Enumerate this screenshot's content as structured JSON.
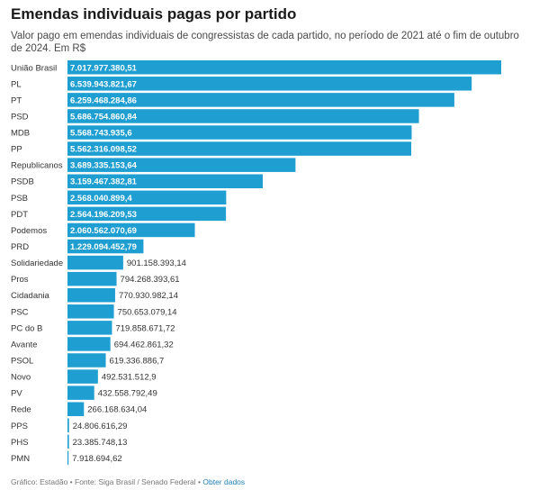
{
  "header": {
    "title": "Emendas individuais pagas por partido",
    "subtitle": "Valor pago em emendas individuais de congressistas de cada partido, no período de 2021 até o fim de outubro de 2024. Em R$"
  },
  "footer": {
    "source": "Gráfico: Estadão • Fonte: Siga Brasil / Senado Federal • ",
    "link": "Obter dados"
  },
  "colors": {
    "bar": "#1f9ed1",
    "label_inside": "#ffffff",
    "label_outside": "#333333",
    "category": "#333333"
  },
  "chart_data": {
    "type": "bar",
    "orientation": "horizontal",
    "title": "Emendas individuais pagas por partido",
    "categories": [
      "União Brasil",
      "PL",
      "PT",
      "PSD",
      "MDB",
      "PP",
      "Republicanos",
      "PSDB",
      "PSB",
      "PDT",
      "Podemos",
      "PRD",
      "Solidariedade",
      "Pros",
      "Cidadania",
      "PSC",
      "PC do B",
      "Avante",
      "PSOL",
      "Novo",
      "PV",
      "Rede",
      "PPS",
      "PHS",
      "PMN"
    ],
    "values": [
      7017977380.51,
      6539943821.67,
      6259468284.86,
      5686754860.84,
      5568743935.6,
      5562316098.52,
      3689335153.64,
      3159467382.81,
      2568040899.4,
      2564196209.53,
      2060562070.69,
      1229094452.79,
      901158393.14,
      794268393.61,
      770930982.14,
      750653079.14,
      719858671.72,
      694462861.32,
      619336886.7,
      492531512.9,
      432558792.49,
      266168634.04,
      24806616.29,
      23385748.13,
      7918694.62
    ],
    "labels": [
      "7.017.977.380,51",
      "6.539.943.821,67",
      "6.259.468.284,86",
      "5.686.754.860,84",
      "5.568.743.935,6",
      "5.562.316.098,52",
      "3.689.335.153,64",
      "3.159.467.382,81",
      "2.568.040.899,4",
      "2.564.196.209,53",
      "2.060.562.070,69",
      "1.229.094.452,79",
      "901.158.393,14",
      "794.268.393,61",
      "770.930.982,14",
      "750.653.079,14",
      "719.858.671,72",
      "694.462.861,32",
      "619.336.886,7",
      "492.531.512,9",
      "432.558.792,49",
      "266.168.634,04",
      "24.806.616,29",
      "23.385.748,13",
      "7.918.694,62"
    ],
    "xlim": [
      0,
      7017977380.51
    ]
  }
}
